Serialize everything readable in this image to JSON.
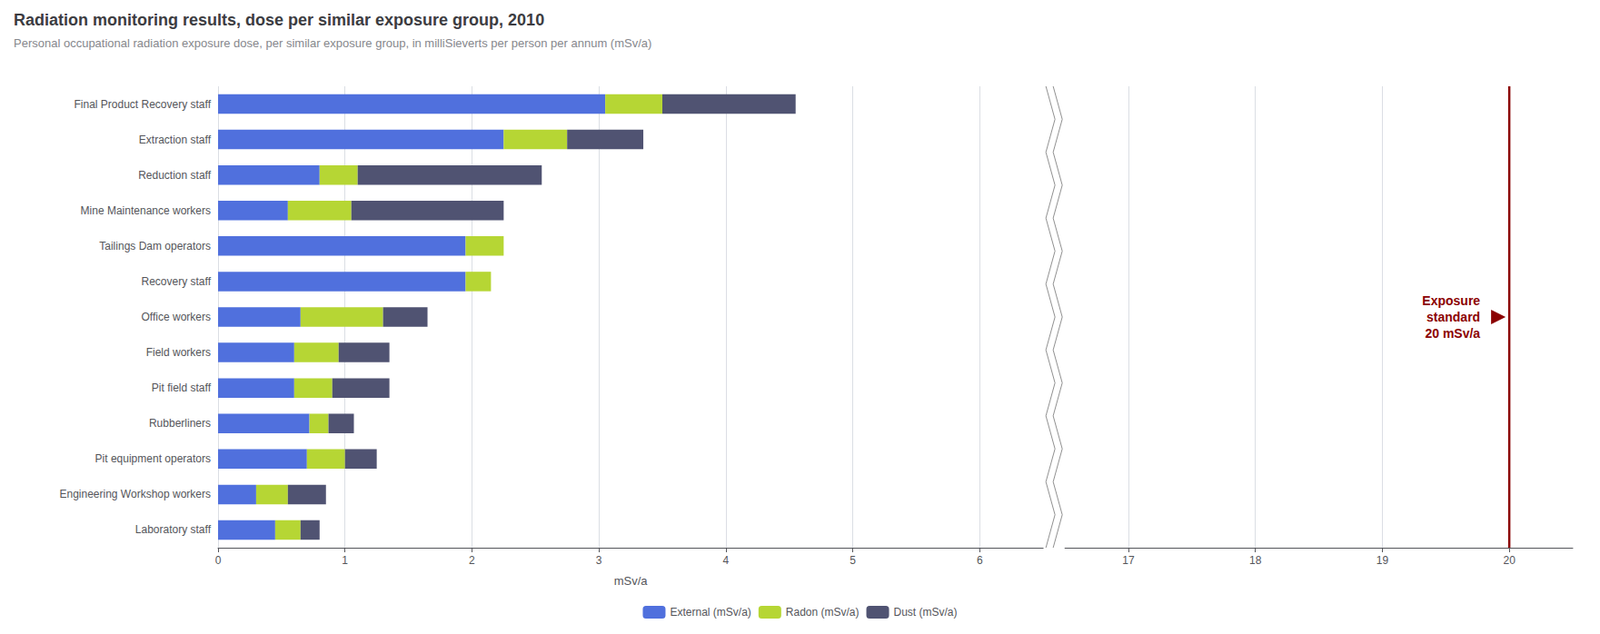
{
  "chart_data": [
    {
      "type": "bar",
      "title": "Radiation monitoring results, dose per similar exposure group, 2010",
      "subtitle": "Personal occupational radiation exposure dose, per similar exposure group, in milliSieverts per person per annum (mSv/a)",
      "xlabel": "mSv/a",
      "orientation": "horizontal",
      "stacked": true,
      "grid": true,
      "legend": "bottom",
      "categories": [
        "Final Product Recovery staff",
        "Extraction staff",
        "Reduction staff",
        "Mine Maintenance workers",
        "Tailings Dam operators",
        "Recovery staff",
        "Office workers",
        "Field workers",
        "Pit field staff",
        "Rubberliners",
        "Pit equipment operators",
        "Engineering Workshop workers",
        "Laboratory staff"
      ],
      "series": [
        {
          "name": "External (mSv/a)",
          "values": [
            3.05,
            2.25,
            0.8,
            0.55,
            1.95,
            1.95,
            0.65,
            0.6,
            0.6,
            0.72,
            0.7,
            0.3,
            0.45
          ]
        },
        {
          "name": "Radon (mSv/a)",
          "values": [
            0.45,
            0.5,
            0.3,
            0.5,
            0.3,
            0.2,
            0.65,
            0.35,
            0.3,
            0.15,
            0.3,
            0.25,
            0.2
          ]
        },
        {
          "name": "Dust (mSv/a)",
          "values": [
            1.05,
            0.6,
            1.45,
            1.2,
            0.0,
            0.0,
            0.35,
            0.4,
            0.45,
            0.2,
            0.25,
            0.3,
            0.15
          ]
        }
      ],
      "xlim": [
        0,
        6.5
      ],
      "xticks": [
        0,
        1,
        2,
        3,
        4,
        5,
        6
      ]
    },
    {
      "type": "bar",
      "orientation": "horizontal",
      "grid": true,
      "tick_labels": "x",
      "categories": [
        "Final Product Recovery staff",
        "Extraction staff",
        "Reduction staff",
        "Mine Maintenance workers",
        "Tailings Dam operators",
        "Recovery staff",
        "Office workers",
        "Field workers",
        "Pit field staff",
        "Rubberliners",
        "Pit equipment operators",
        "Engineering Workshop workers",
        "Laboratory staff"
      ],
      "xlim": [
        16.5,
        20.5
      ],
      "xticks": [
        17,
        18,
        19,
        20
      ],
      "annotations": [
        {
          "text": "Exposure\nstandard\n20 mSv/a",
          "x": 20,
          "color": "#8b0000"
        }
      ]
    }
  ]
}
